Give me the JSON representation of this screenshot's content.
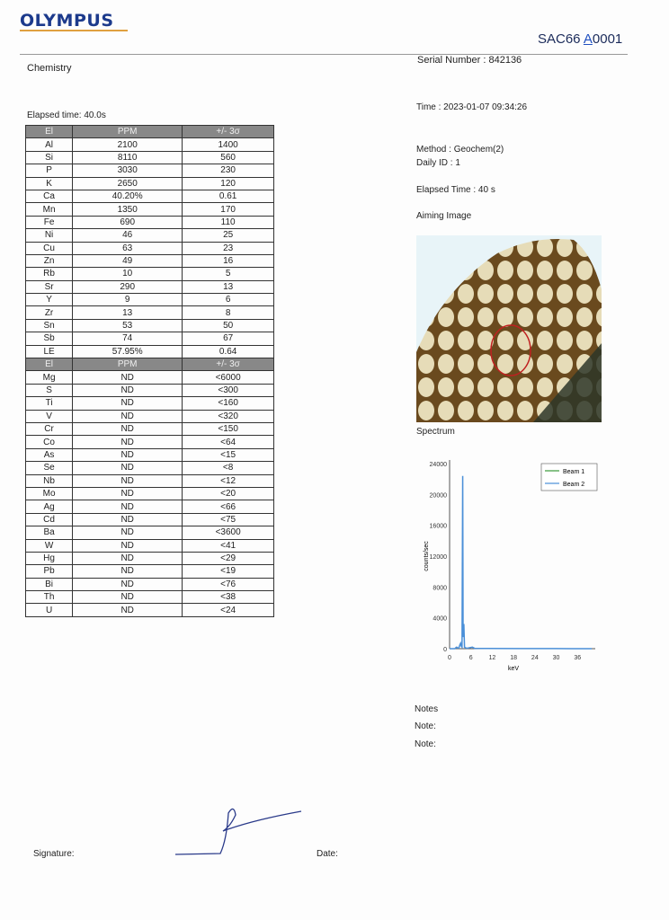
{
  "header": {
    "brand": "OLYMPUS",
    "doc_id_prefix": "SAC66",
    "doc_id_mark": "A",
    "doc_id_suffix": "0001"
  },
  "left": {
    "section": "Chemistry",
    "elapsed": "Elapsed time: 40.0s"
  },
  "table": {
    "headers": [
      "El",
      "PPM",
      "+/- 3σ"
    ],
    "detected": [
      [
        "Al",
        "2100",
        "1400"
      ],
      [
        "Si",
        "8110",
        "560"
      ],
      [
        "P",
        "3030",
        "230"
      ],
      [
        "K",
        "2650",
        "120"
      ],
      [
        "Ca",
        "40.20%",
        "0.61"
      ],
      [
        "Mn",
        "1350",
        "170"
      ],
      [
        "Fe",
        "690",
        "110"
      ],
      [
        "Ni",
        "46",
        "25"
      ],
      [
        "Cu",
        "63",
        "23"
      ],
      [
        "Zn",
        "49",
        "16"
      ],
      [
        "Rb",
        "10",
        "5"
      ],
      [
        "Sr",
        "290",
        "13"
      ],
      [
        "Y",
        "9",
        "6"
      ],
      [
        "Zr",
        "13",
        "8"
      ],
      [
        "Sn",
        "53",
        "50"
      ],
      [
        "Sb",
        "74",
        "67"
      ],
      [
        "LE",
        "57.95%",
        "0.64"
      ]
    ],
    "not_detected": [
      [
        "Mg",
        "ND",
        "<6000"
      ],
      [
        "S",
        "ND",
        "<300"
      ],
      [
        "Ti",
        "ND",
        "<160"
      ],
      [
        "V",
        "ND",
        "<320"
      ],
      [
        "Cr",
        "ND",
        "<150"
      ],
      [
        "Co",
        "ND",
        "<64"
      ],
      [
        "As",
        "ND",
        "<15"
      ],
      [
        "Se",
        "ND",
        "<8"
      ],
      [
        "Nb",
        "ND",
        "<12"
      ],
      [
        "Mo",
        "ND",
        "<20"
      ],
      [
        "Ag",
        "ND",
        "<66"
      ],
      [
        "Cd",
        "ND",
        "<75"
      ],
      [
        "Ba",
        "ND",
        "<3600"
      ],
      [
        "W",
        "ND",
        "<41"
      ],
      [
        "Hg",
        "ND",
        "<29"
      ],
      [
        "Pb",
        "ND",
        "<19"
      ],
      [
        "Bi",
        "ND",
        "<76"
      ],
      [
        "Th",
        "ND",
        "<38"
      ],
      [
        "U",
        "ND",
        "<24"
      ]
    ]
  },
  "info": {
    "serial": "Serial Number  : 842136",
    "time": "Time     : 2023-01-07  09:34:26",
    "method": "Method  : Geochem(2)",
    "daily_id": "Daily ID : 1",
    "elapsed": "Elapsed Time  : 40 s",
    "aiming": "Aiming Image",
    "spectrum": "Spectrum"
  },
  "notes": {
    "title": "Notes",
    "note1": "Note:",
    "note2": "Note:"
  },
  "footer": {
    "signature": "Signature:",
    "date": "Date:"
  },
  "chart_data": {
    "type": "line",
    "xlabel": "keV",
    "ylabel": "counts/sec",
    "xlim": [
      0,
      41
    ],
    "ylim": [
      0,
      24000
    ],
    "xticks": [
      0,
      6,
      12,
      18,
      24,
      30,
      36
    ],
    "yticks": [
      0,
      4000,
      8000,
      12000,
      16000,
      20000,
      24000
    ],
    "legend": "top-right",
    "series": [
      {
        "name": "Beam 1",
        "color": "#3a9a3a",
        "x": [],
        "y": []
      },
      {
        "name": "Beam 2",
        "color": "#4a8fd8",
        "x": [
          0,
          1.5,
          1.8,
          2.0,
          2.3,
          2.6,
          2.9,
          3.1,
          3.3,
          3.5,
          3.69,
          3.8,
          4.01,
          4.2,
          4.5,
          5,
          6.4,
          7,
          10,
          20,
          30,
          40
        ],
        "y": [
          0,
          0,
          150,
          200,
          80,
          100,
          500,
          700,
          300,
          200,
          22400,
          1500,
          3200,
          200,
          100,
          60,
          200,
          50,
          30,
          20,
          10,
          0
        ]
      }
    ]
  }
}
